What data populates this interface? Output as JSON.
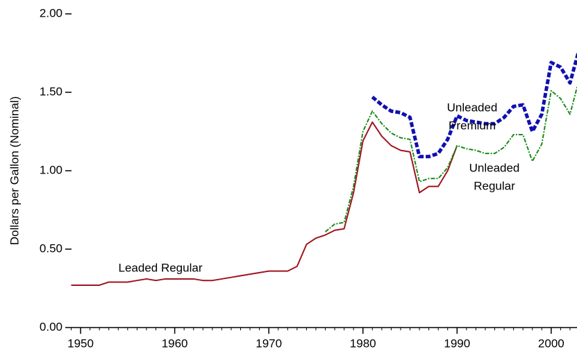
{
  "chart_data": {
    "type": "line",
    "y_label": "Dollars per Gallon (Nominal)",
    "x": [
      1949,
      1950,
      1951,
      1952,
      1953,
      1954,
      1955,
      1956,
      1957,
      1958,
      1959,
      1960,
      1961,
      1962,
      1963,
      1964,
      1965,
      1966,
      1967,
      1968,
      1969,
      1970,
      1971,
      1972,
      1973,
      1974,
      1975,
      1976,
      1977,
      1978,
      1979,
      1980,
      1981,
      1982,
      1983,
      1984,
      1985,
      1986,
      1987,
      1988,
      1989,
      1990,
      1991,
      1992,
      1993,
      1994,
      1995,
      1996,
      1997,
      1998,
      1999,
      2000,
      2001,
      2002,
      2003
    ],
    "series": [
      {
        "name": "Leaded Regular",
        "color": "#a0141e",
        "dash": "solid",
        "values": [
          0.27,
          0.27,
          0.27,
          0.27,
          0.29,
          0.29,
          0.29,
          0.3,
          0.31,
          0.3,
          0.31,
          0.31,
          0.31,
          0.31,
          0.3,
          0.3,
          0.31,
          0.32,
          0.33,
          0.34,
          0.35,
          0.36,
          0.36,
          0.36,
          0.39,
          0.53,
          0.57,
          0.59,
          0.62,
          0.63,
          0.86,
          1.19,
          1.31,
          1.22,
          1.16,
          1.13,
          1.12,
          0.86,
          0.9,
          0.9,
          1.0,
          1.16,
          null,
          null,
          null,
          null,
          null,
          null,
          null,
          null,
          null,
          null,
          null,
          null,
          null
        ]
      },
      {
        "name": "Unleaded Regular",
        "color": "#1a8a1a",
        "dash": "dashdot",
        "values": [
          null,
          null,
          null,
          null,
          null,
          null,
          null,
          null,
          null,
          null,
          null,
          null,
          null,
          null,
          null,
          null,
          null,
          null,
          null,
          null,
          null,
          null,
          null,
          null,
          null,
          null,
          null,
          0.61,
          0.66,
          0.67,
          0.9,
          1.25,
          1.38,
          1.3,
          1.24,
          1.21,
          1.2,
          0.93,
          0.95,
          0.95,
          1.02,
          1.16,
          1.14,
          1.13,
          1.11,
          1.11,
          1.15,
          1.23,
          1.23,
          1.06,
          1.17,
          1.51,
          1.46,
          1.36,
          1.59
        ]
      },
      {
        "name": "Unleaded Premium",
        "color": "#1010b0",
        "dash": "dashed",
        "values": [
          null,
          null,
          null,
          null,
          null,
          null,
          null,
          null,
          null,
          null,
          null,
          null,
          null,
          null,
          null,
          null,
          null,
          null,
          null,
          null,
          null,
          null,
          null,
          null,
          null,
          null,
          null,
          null,
          null,
          null,
          null,
          null,
          1.47,
          1.42,
          1.38,
          1.37,
          1.34,
          1.09,
          1.09,
          1.11,
          1.2,
          1.35,
          1.32,
          1.31,
          1.3,
          1.3,
          1.34,
          1.41,
          1.42,
          1.25,
          1.36,
          1.69,
          1.66,
          1.56,
          1.78
        ]
      }
    ],
    "annotations": [
      [
        "Leaded Regular"
      ],
      [
        "Unleaded",
        "Premium"
      ],
      [
        "Unleaded",
        "Regular"
      ]
    ],
    "xlim": [
      1949,
      2003
    ],
    "xticks": [
      1950,
      1960,
      1970,
      1980,
      1990,
      2000
    ],
    "ylim": [
      0,
      2
    ],
    "yticks": [
      {
        "value": 0,
        "label": "0.00"
      },
      {
        "value": 0.5,
        "label": "0.50"
      },
      {
        "value": 1,
        "label": "1.00"
      },
      {
        "value": 1.5,
        "label": "1.50"
      },
      {
        "value": 2,
        "label": "2.00"
      }
    ]
  }
}
